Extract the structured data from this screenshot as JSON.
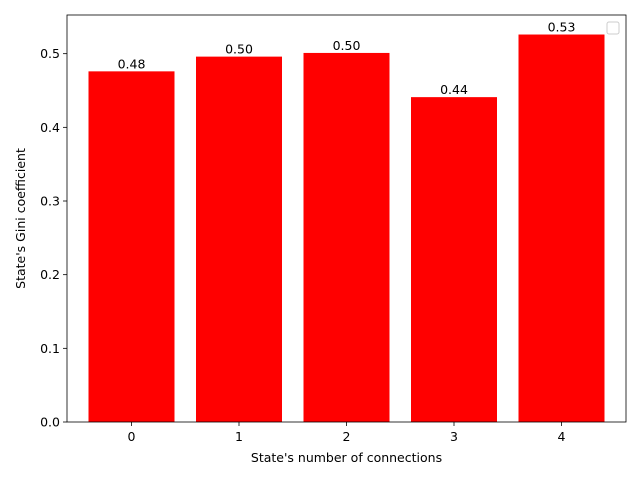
{
  "chart_data": {
    "type": "bar",
    "categories": [
      "0",
      "1",
      "2",
      "3",
      "4"
    ],
    "values": [
      0.476,
      0.496,
      0.501,
      0.441,
      0.526
    ],
    "data_labels": [
      "0.48",
      "0.50",
      "0.50",
      "0.44",
      "0.53"
    ],
    "title": "",
    "xlabel": "State's number of connections",
    "ylabel": "State's Gini coefficient",
    "ylim": [
      0,
      0.5525
    ],
    "xlim": [
      -0.6,
      4.6
    ],
    "yticks": [
      0.0,
      0.1,
      0.2,
      0.3,
      0.4,
      0.5
    ],
    "ytick_labels": [
      "0.0",
      "0.1",
      "0.2",
      "0.3",
      "0.4",
      "0.5"
    ],
    "bar_width": 0.8,
    "bar_color": "#ff0000",
    "grid": false,
    "legend": {
      "placement": "top-right",
      "entries": []
    }
  }
}
